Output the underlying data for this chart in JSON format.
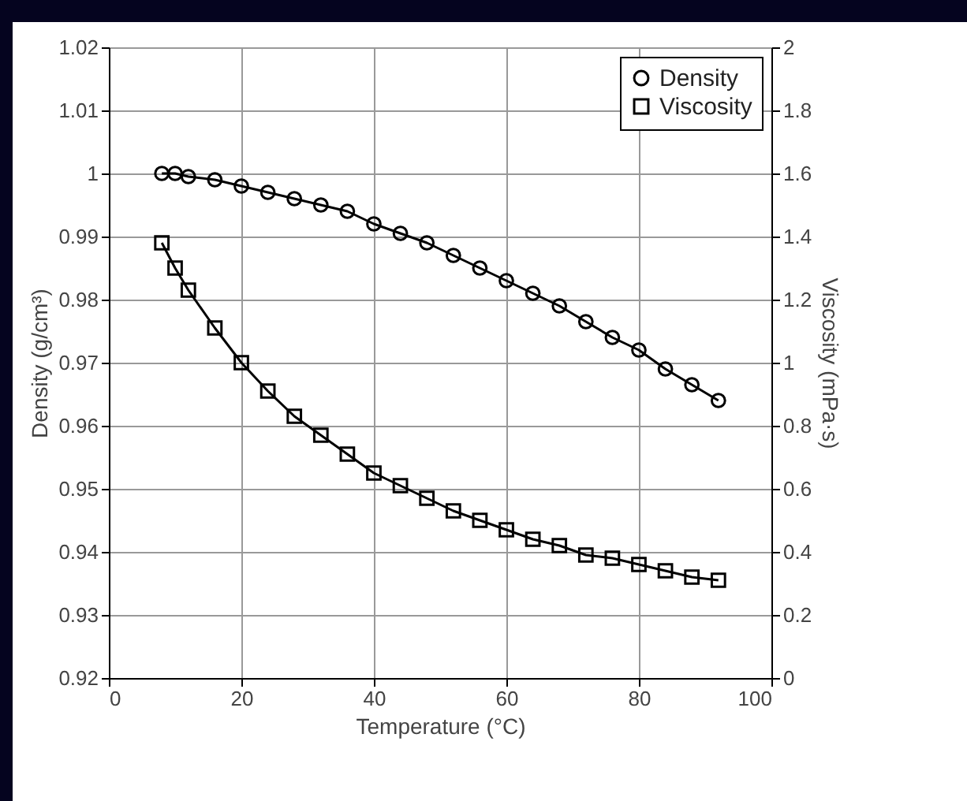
{
  "chart_data": {
    "type": "line",
    "xlabel": "Temperature (°C)",
    "ylabel": "Density (g/cm³)",
    "y2label": "Viscosity (mPa·s)",
    "x": [
      8,
      10,
      12,
      16,
      20,
      24,
      28,
      32,
      36,
      40,
      44,
      48,
      52,
      56,
      60,
      64,
      68,
      72,
      76,
      80,
      84,
      88,
      92
    ],
    "series": [
      {
        "name": "Density",
        "color": "#000000",
        "marker": "circle",
        "values": [
          1.0,
          1.0,
          0.9995,
          0.999,
          0.998,
          0.997,
          0.996,
          0.995,
          0.994,
          0.992,
          0.9905,
          0.989,
          0.987,
          0.985,
          0.983,
          0.981,
          0.979,
          0.9765,
          0.974,
          0.972,
          0.969,
          0.9665,
          0.964
        ]
      },
      {
        "name": "Viscosity",
        "color": "#000000",
        "marker": "square",
        "axis": "y2",
        "values": [
          1.38,
          1.3,
          1.23,
          1.11,
          1.0,
          0.91,
          0.83,
          0.77,
          0.71,
          0.65,
          0.61,
          0.57,
          0.53,
          0.5,
          0.47,
          0.44,
          0.42,
          0.39,
          0.38,
          0.36,
          0.34,
          0.32,
          0.31
        ]
      }
    ],
    "xlim": [
      0,
      100
    ],
    "xticks": [
      0,
      20,
      40,
      60,
      80,
      100
    ],
    "ylim": [
      0.92,
      1.02
    ],
    "yticks": [
      0.92,
      0.93,
      0.94,
      0.95,
      0.96,
      0.97,
      0.98,
      0.99,
      1,
      1.01,
      1.02
    ],
    "y2lim": [
      0,
      2
    ],
    "y2ticks": [
      0,
      0.2,
      0.4,
      0.6,
      0.8,
      1,
      1.2,
      1.4,
      1.6,
      1.8,
      2
    ],
    "grid": true,
    "legend": "top right",
    "line_style": "solid"
  }
}
